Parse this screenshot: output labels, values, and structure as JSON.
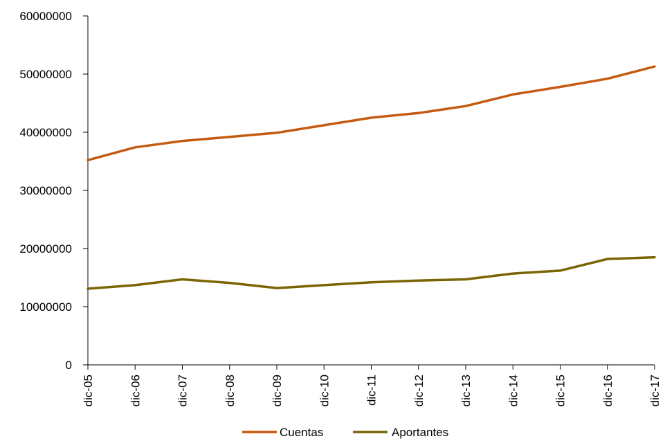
{
  "chart_data": {
    "type": "line",
    "title": "",
    "xlabel": "",
    "ylabel": "",
    "x": [
      "dic-05",
      "dic-06",
      "dic-07",
      "dic-08",
      "dic-09",
      "dic-10",
      "dic-11",
      "dic-12",
      "dic-13",
      "dic-14",
      "dic-15",
      "dic-16",
      "dic-17"
    ],
    "ylim": [
      0,
      60000000
    ],
    "yticks": [
      "0",
      "10000000",
      "20000000",
      "30000000",
      "40000000",
      "50000000",
      "60000000"
    ],
    "ytick_values": [
      0,
      10000000,
      20000000,
      30000000,
      40000000,
      50000000,
      60000000
    ],
    "grid": false,
    "legend_position": "bottom",
    "series": [
      {
        "name": "Cuentas",
        "color": "#C55A11",
        "values": [
          35200000,
          37400000,
          38500000,
          39200000,
          39900000,
          41200000,
          42500000,
          43300000,
          44500000,
          46500000,
          47800000,
          49200000,
          51300000
        ]
      },
      {
        "name": "Aportantes",
        "color": "#7B6403",
        "values": [
          13100000,
          13700000,
          14700000,
          14100000,
          13200000,
          13700000,
          14200000,
          14500000,
          14700000,
          15700000,
          16200000,
          18200000,
          18500000
        ]
      }
    ]
  }
}
